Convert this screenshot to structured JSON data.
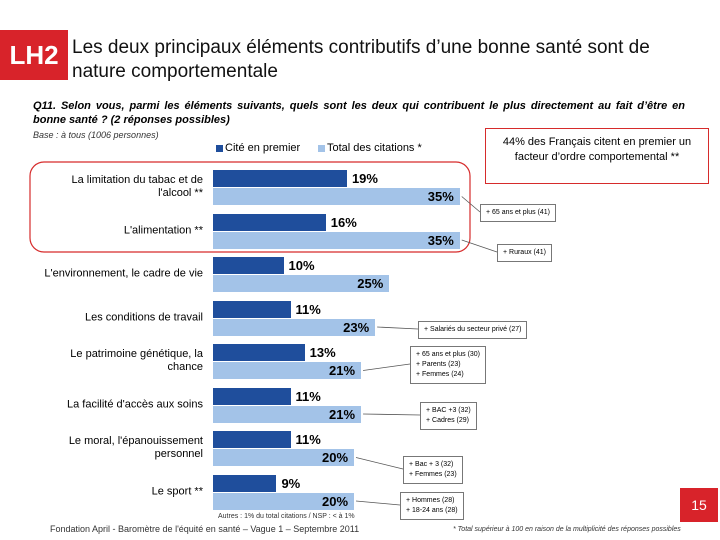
{
  "logo": "LH2",
  "chart_data": {
    "type": "bar",
    "orientation": "horizontal",
    "title": "Les deux principaux éléments contributifs d’une bonne santé sont de nature comportementale",
    "subtitle": "Q11. Selon vous, parmi les éléments suivants, quels sont les deux qui contribuent le plus directement au fait d’être en bonne santé ? (2 réponses possibles)",
    "base": "Base : à tous (1006 personnes)",
    "categories": [
      "La limitation du tabac et de l'alcool **",
      "L'alimentation **",
      "L'environnement, le cadre de vie",
      "Les conditions de travail",
      "Le patrimoine génétique, la chance",
      "La facilité d'accès aux soins",
      "Le moral, l'épanouissement personnel",
      "Le sport **"
    ],
    "series": [
      {
        "name": "Cité en premier",
        "color": "#1f4e9c",
        "values": [
          19,
          16,
          10,
          11,
          13,
          11,
          11,
          9
        ],
        "value_labels": [
          "19%",
          "16%",
          "10%",
          "11%",
          "13%",
          "11%",
          "11%",
          "9%"
        ]
      },
      {
        "name": "Total des citations *",
        "color": "#a3c3e8",
        "values": [
          35,
          35,
          25,
          23,
          21,
          21,
          20,
          20
        ],
        "value_labels": [
          "35%",
          "35%",
          "25%",
          "23%",
          "21%",
          "21%",
          "20%",
          "20%"
        ]
      }
    ],
    "callouts": [
      [
        "+ 65 ans et plus (41)"
      ],
      [
        "+ Ruraux (41)"
      ],
      null,
      [
        "+ Salariés du secteur privé (27)"
      ],
      [
        "+ 65 ans et plus (30)",
        "+ Parents (23)",
        "+ Femmes (24)"
      ],
      [
        "+ BAC +3 (32)",
        "+ Cadres (29)"
      ],
      [
        "+ Bac + 3 (32)",
        "+ Femmes (23)"
      ],
      [
        "+ Hommes (28)",
        "+ 18-24 ans (28)"
      ]
    ],
    "highlight": "44% des Français citent en premier un facteur d’ordre comportemental **",
    "note": "Autres : 1% du total citations / NSP : < à 1%",
    "footnote": "* Total supérieur à 100 en raison de la multiplicité des réponses possibles"
  },
  "footer": "Fondation April - Baromètre de l'équité en santé – Vague 1 – Septembre 2011",
  "page_number": "15"
}
